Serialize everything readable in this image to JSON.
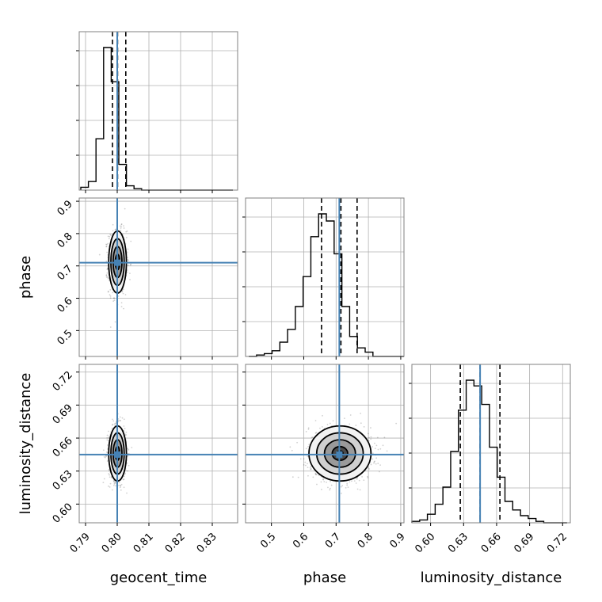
{
  "chart_data": {
    "type": "corner",
    "parameters": [
      "geocent_time",
      "phase",
      "luminosity_distance"
    ],
    "truths": {
      "geocent_time": 0.8,
      "phase": 0.71,
      "luminosity_distance": 0.645
    },
    "ranges": {
      "geocent_time": [
        0.788,
        0.838
      ],
      "phase": [
        0.42,
        0.91
      ],
      "luminosity_distance": [
        0.583,
        0.727
      ]
    },
    "ticks": {
      "geocent_time": {
        "values": [
          0.79,
          0.8,
          0.81,
          0.82,
          0.83
        ],
        "labels": [
          "0.79",
          "0.80",
          "0.81",
          "0.82",
          "0.83"
        ]
      },
      "phase": {
        "values": [
          0.5,
          0.6,
          0.7,
          0.8,
          0.9
        ],
        "labels": [
          "0.5",
          "0.6",
          "0.7",
          "0.8",
          "0.9"
        ]
      },
      "luminosity_distance": {
        "values": [
          0.6,
          0.63,
          0.66,
          0.69,
          0.72
        ],
        "labels": [
          "0.60",
          "0.63",
          "0.66",
          "0.69",
          "0.72"
        ]
      }
    },
    "quantiles": {
      "geocent_time": [
        0.7985,
        0.8001,
        0.8027
      ],
      "phase": [
        0.655,
        0.715,
        0.765
      ],
      "luminosity_distance": [
        0.627,
        0.645,
        0.663
      ]
    },
    "histograms": {
      "geocent_time": {
        "edges_start": 0.7885,
        "bin_width": 0.0024,
        "counts": [
          0.02,
          0.06,
          0.36,
          1.0,
          0.76,
          0.18,
          0.03,
          0.01,
          0.0,
          0.0,
          0.0,
          0.0,
          0.0,
          0.0,
          0.0,
          0.0,
          0.0,
          0.0,
          0.0,
          0.0
        ]
      },
      "phase": {
        "edges_start": 0.43,
        "bin_width": 0.024,
        "counts": [
          0.0,
          0.01,
          0.02,
          0.04,
          0.1,
          0.19,
          0.35,
          0.56,
          0.84,
          1.0,
          0.95,
          0.72,
          0.35,
          0.14,
          0.06,
          0.03,
          0.0,
          0.0,
          0.0,
          0.0
        ]
      },
      "luminosity_distance": {
        "edges_start": 0.583,
        "bin_width": 0.00705,
        "counts": [
          0.01,
          0.02,
          0.06,
          0.13,
          0.25,
          0.5,
          0.79,
          1.0,
          0.96,
          0.83,
          0.53,
          0.32,
          0.15,
          0.09,
          0.05,
          0.03,
          0.01,
          0.0,
          0.0,
          0.0
        ]
      }
    },
    "posteriors_2d": {
      "phase_vs_geocent_time": {
        "center": [
          0.8001,
          0.712
        ],
        "sigma": [
          0.0014,
          0.048
        ],
        "correlation": 0.0
      },
      "luminosity_distance_vs_geocent_time": {
        "center": [
          0.8001,
          0.646
        ],
        "sigma": [
          0.0014,
          0.0125
        ],
        "correlation": 0.0
      },
      "luminosity_distance_vs_phase": {
        "center": [
          0.712,
          0.646
        ],
        "sigma": [
          0.048,
          0.0125
        ],
        "correlation": 0.0
      }
    },
    "contour_levels_sigma": [
      0.5,
      1.0,
      1.5,
      2.0
    ],
    "colors": {
      "truth": "#4682b4",
      "hist": "#000000",
      "grid": "#b0b0b0",
      "scatter": "#000000",
      "frame": "#808080"
    },
    "grid": true,
    "tick_rotation_deg": 45
  }
}
